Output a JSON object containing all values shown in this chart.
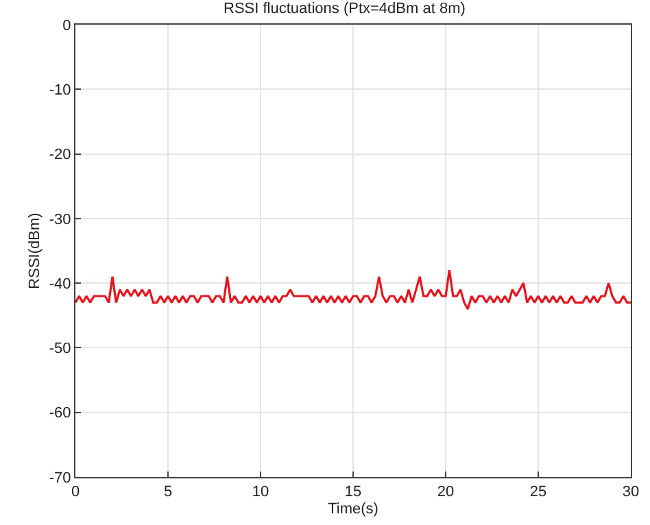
{
  "chart_data": {
    "type": "line",
    "title": "RSSI fluctuations (Ptx=4dBm at 8m)",
    "xlabel": "Time(s)",
    "ylabel": "RSSI(dBm)",
    "x": [
      0,
      0.2,
      0.4,
      0.6,
      0.8,
      1.0,
      1.2,
      1.4,
      1.6,
      1.8,
      2.0,
      2.2,
      2.4,
      2.6,
      2.8,
      3.0,
      3.2,
      3.4,
      3.6,
      3.8,
      4.0,
      4.2,
      4.4,
      4.6,
      4.8,
      5.0,
      5.2,
      5.4,
      5.6,
      5.8,
      6.0,
      6.2,
      6.4,
      6.6,
      6.8,
      7.0,
      7.2,
      7.4,
      7.6,
      7.8,
      8.0,
      8.2,
      8.4,
      8.6,
      8.8,
      9.0,
      9.2,
      9.4,
      9.6,
      9.8,
      10.0,
      10.2,
      10.4,
      10.6,
      10.8,
      11.0,
      11.2,
      11.4,
      11.6,
      11.8,
      12.0,
      12.2,
      12.4,
      12.6,
      12.8,
      13.0,
      13.2,
      13.4,
      13.6,
      13.8,
      14.0,
      14.2,
      14.4,
      14.6,
      14.8,
      15.0,
      15.2,
      15.4,
      15.6,
      15.8,
      16.0,
      16.2,
      16.4,
      16.6,
      16.8,
      17.0,
      17.2,
      17.4,
      17.6,
      17.8,
      18.0,
      18.2,
      18.4,
      18.6,
      18.8,
      19.0,
      19.2,
      19.4,
      19.6,
      19.8,
      20.0,
      20.2,
      20.4,
      20.6,
      20.8,
      21.0,
      21.2,
      21.4,
      21.6,
      21.8,
      22.0,
      22.2,
      22.4,
      22.6,
      22.8,
      23.0,
      23.2,
      23.4,
      23.6,
      23.8,
      24.0,
      24.2,
      24.4,
      24.6,
      24.8,
      25.0,
      25.2,
      25.4,
      25.6,
      25.8,
      26.0,
      26.2,
      26.4,
      26.6,
      26.8,
      27.0,
      27.2,
      27.4,
      27.6,
      27.8,
      28.0,
      28.2,
      28.4,
      28.6,
      28.8,
      29.0,
      29.2,
      29.4,
      29.6,
      29.8,
      30.0
    ],
    "series": [
      {
        "color": "#e8141c",
        "values": [
          -43,
          -42,
          -43,
          -42,
          -43,
          -42,
          -42,
          -42,
          -42,
          -43,
          -39,
          -43,
          -41,
          -42,
          -41,
          -42,
          -41,
          -42,
          -41,
          -42,
          -41,
          -43,
          -43,
          -42,
          -43,
          -42,
          -43,
          -42,
          -43,
          -42,
          -43,
          -42,
          -42,
          -43,
          -42,
          -42,
          -42,
          -43,
          -42,
          -42,
          -43,
          -39,
          -43,
          -42,
          -43,
          -43,
          -42,
          -43,
          -42,
          -43,
          -42,
          -43,
          -42,
          -43,
          -42,
          -43,
          -42,
          -42,
          -41,
          -42,
          -42,
          -42,
          -42,
          -42,
          -43,
          -42,
          -43,
          -42,
          -43,
          -42,
          -43,
          -42,
          -43,
          -42,
          -43,
          -42,
          -42,
          -43,
          -42,
          -42,
          -43,
          -42,
          -39,
          -42,
          -43,
          -42,
          -42,
          -43,
          -42,
          -43,
          -41,
          -43,
          -41,
          -39,
          -42,
          -42,
          -41,
          -42,
          -41,
          -42,
          -42,
          -38,
          -42,
          -42,
          -41,
          -43,
          -44,
          -42,
          -43,
          -42,
          -42,
          -43,
          -42,
          -43,
          -42,
          -43,
          -42,
          -43,
          -41,
          -42,
          -41,
          -40,
          -43,
          -42,
          -43,
          -42,
          -43,
          -42,
          -43,
          -42,
          -43,
          -42,
          -43,
          -43,
          -42,
          -43,
          -43,
          -43,
          -42,
          -43,
          -42,
          -43,
          -42,
          -42,
          -40,
          -42,
          -43,
          -43,
          -42,
          -43,
          -43
        ]
      }
    ],
    "xlim": [
      0,
      30
    ],
    "xticks": [
      0,
      5,
      10,
      15,
      20,
      25,
      30
    ],
    "ylim": [
      -70,
      0
    ],
    "yticks": [
      -70,
      -60,
      -50,
      -40,
      -30,
      -20,
      -10,
      0
    ],
    "grid": true,
    "marker": "none",
    "line_style": "solid"
  }
}
